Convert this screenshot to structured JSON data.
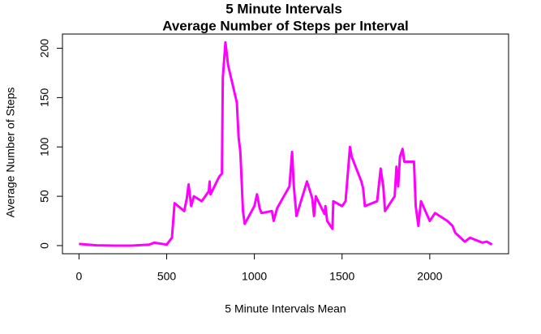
{
  "chart_data": {
    "type": "line",
    "title": [
      "5 Minute Intervals",
      "Average Number of Steps per Interval"
    ],
    "x_label": "5 Minute Intervals Mean",
    "y_label": "Average Number of Steps",
    "color": "#ff00ff",
    "x": [
      0,
      100,
      200,
      300,
      400,
      430,
      500,
      530,
      545,
      600,
      615,
      625,
      640,
      655,
      700,
      720,
      740,
      745,
      750,
      800,
      815,
      820,
      835,
      850,
      900,
      910,
      920,
      935,
      945,
      1000,
      1015,
      1030,
      1040,
      1100,
      1110,
      1130,
      1200,
      1215,
      1225,
      1240,
      1300,
      1330,
      1340,
      1350,
      1400,
      1405,
      1415,
      1445,
      1450,
      1500,
      1520,
      1545,
      1555,
      1610,
      1620,
      1630,
      1700,
      1720,
      1735,
      1745,
      1800,
      1810,
      1820,
      1830,
      1845,
      1855,
      1900,
      1910,
      1920,
      1935,
      1950,
      2000,
      2030,
      2100,
      2130,
      2145,
      2200,
      2230,
      2300,
      2325,
      2355
    ],
    "values": [
      1.7,
      0.3,
      0,
      0,
      1,
      3,
      1,
      8,
      43,
      35,
      48,
      62,
      40,
      50,
      45,
      50,
      55,
      65,
      52,
      70,
      73,
      170,
      206,
      183,
      145,
      110,
      95,
      35,
      22,
      40,
      52,
      38,
      33,
      35,
      25,
      38,
      60,
      95,
      60,
      30,
      65,
      48,
      30,
      50,
      32,
      40,
      25,
      17,
      45,
      40,
      45,
      100,
      90,
      65,
      58,
      40,
      45,
      78,
      60,
      35,
      50,
      80,
      60,
      90,
      98,
      85,
      85,
      85,
      40,
      20,
      45,
      25,
      33,
      25,
      20,
      13,
      4,
      8,
      3,
      4,
      1
    ],
    "xlim": [
      -94.2,
      2449.2
    ],
    "xticks": [
      0,
      500,
      1000,
      1500,
      2000
    ],
    "ylim": [
      -8.25,
      214.4
    ],
    "yticks": [
      0,
      50,
      100,
      150,
      200
    ]
  }
}
